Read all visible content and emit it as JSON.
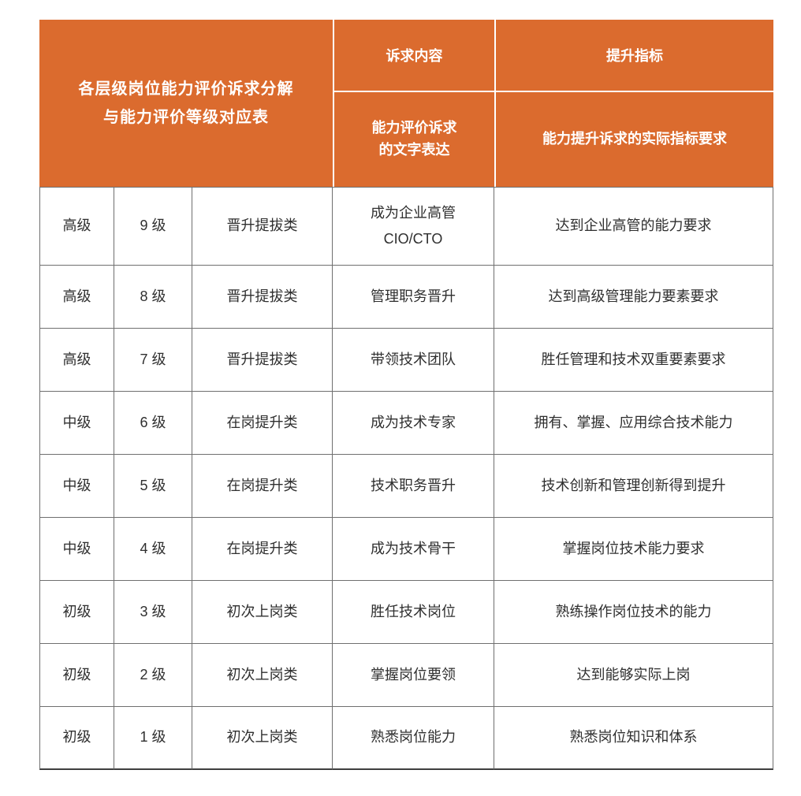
{
  "colors": {
    "header_bg": "#db6b2e",
    "header_text": "#ffffff",
    "body_text": "#2f2f2f",
    "grid_line": "#6f6f6f",
    "page_bg": "#ffffff"
  },
  "table": {
    "title": "各层级岗位能力评价诉求分解\n与能力评价等级对应表",
    "header": {
      "demand_group": "诉求内容",
      "indicator_group": "提升指标",
      "demand_sub": "能力评价诉求\n的文字表达",
      "indicator_sub": "能力提升诉求的实际指标要求"
    },
    "rows": [
      {
        "tier": "高级",
        "level": "9 级",
        "category": "晋升提拔类",
        "demand": "成为企业高管\nCIO/CTO",
        "indicator": "达到企业高管的能力要求"
      },
      {
        "tier": "高级",
        "level": "8 级",
        "category": "晋升提拔类",
        "demand": "管理职务晋升",
        "indicator": "达到高级管理能力要素要求"
      },
      {
        "tier": "高级",
        "level": "7 级",
        "category": "晋升提拔类",
        "demand": "带领技术团队",
        "indicator": "胜任管理和技术双重要素要求"
      },
      {
        "tier": "中级",
        "level": "6 级",
        "category": "在岗提升类",
        "demand": "成为技术专家",
        "indicator": "拥有、掌握、应用综合技术能力"
      },
      {
        "tier": "中级",
        "level": "5 级",
        "category": "在岗提升类",
        "demand": "技术职务晋升",
        "indicator": "技术创新和管理创新得到提升"
      },
      {
        "tier": "中级",
        "level": "4 级",
        "category": "在岗提升类",
        "demand": "成为技术骨干",
        "indicator": "掌握岗位技术能力要求"
      },
      {
        "tier": "初级",
        "level": "3 级",
        "category": "初次上岗类",
        "demand": "胜任技术岗位",
        "indicator": "熟练操作岗位技术的能力"
      },
      {
        "tier": "初级",
        "level": "2 级",
        "category": "初次上岗类",
        "demand": "掌握岗位要领",
        "indicator": "达到能够实际上岗"
      },
      {
        "tier": "初级",
        "level": "1 级",
        "category": "初次上岗类",
        "demand": "熟悉岗位能力",
        "indicator": "熟悉岗位知识和体系"
      }
    ]
  }
}
